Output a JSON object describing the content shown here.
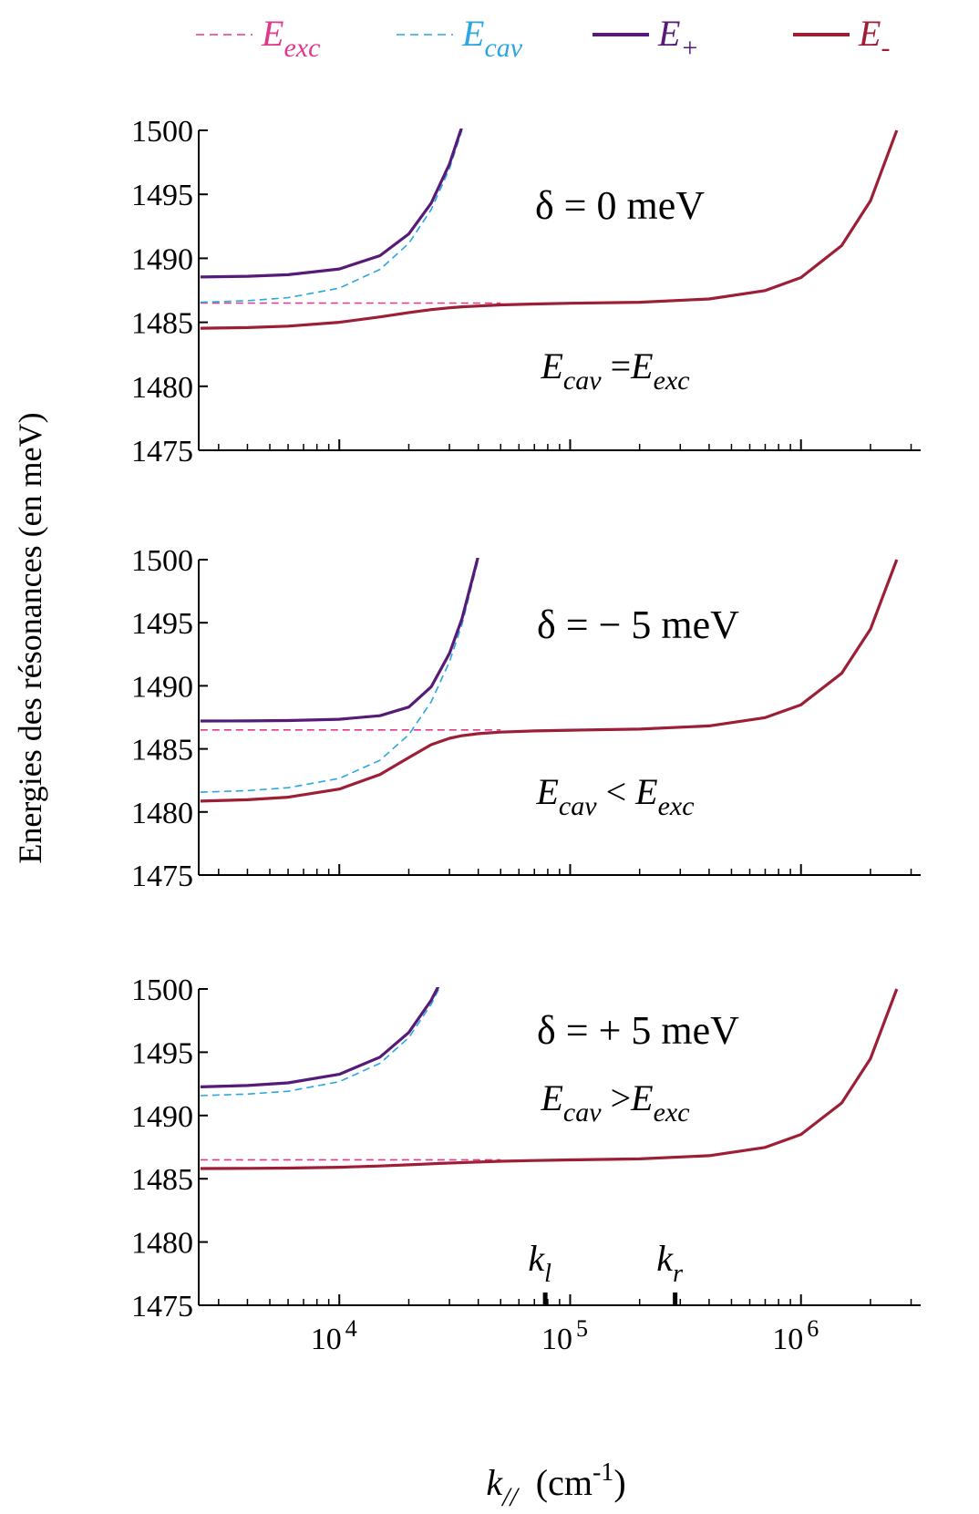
{
  "y_label": "Energies des résonances (en meV)",
  "chart_data": [
    {
      "type": "line",
      "xscale": "log",
      "xlim": [
        2460,
        3300000
      ],
      "ylim": [
        1475,
        1500
      ],
      "yticks": [
        1475,
        1480,
        1485,
        1490,
        1495,
        1500
      ],
      "xticks": [
        10000,
        100000,
        1000000
      ],
      "xtick_labels": false,
      "xminor_ticks": [
        3000,
        4000,
        5000,
        6000,
        7000,
        8000,
        9000,
        20000,
        30000,
        40000,
        50000,
        60000,
        70000,
        80000,
        90000,
        200000,
        300000,
        400000,
        500000,
        600000,
        700000,
        800000,
        900000,
        2000000,
        3000000
      ],
      "annotation": "δ = 0 meV",
      "relation": [
        {
          "text": "E",
          "sub": "cav",
          "italic": true
        },
        {
          "text": " ="
        },
        {
          "text": "E",
          "sub": "exc",
          "italic": true
        }
      ],
      "x": [
        2500,
        4000,
        6000,
        10000,
        15000,
        20000,
        25000,
        30000,
        34000,
        50000,
        70000,
        100000,
        200000,
        400000,
        700000,
        1000000,
        1500000,
        2000000,
        2600000
      ],
      "series": [
        {
          "name": "E",
          "subscript": "exc",
          "color": "#e2388c",
          "dashed": true,
          "values": [
            1486.5,
            1486.5,
            1486.5,
            1486.5,
            1486.5,
            1486.5,
            1486.5,
            1486.5,
            1486.5,
            1486.5,
            null,
            null,
            null,
            null,
            null,
            null,
            null,
            null,
            null
          ]
        },
        {
          "name": "E",
          "subscript": "cav",
          "color": "#2aa6e0",
          "dashed": true,
          "values": [
            1486.57,
            1486.69,
            1486.92,
            1487.67,
            1489.13,
            1491.17,
            1493.8,
            1497.01,
            1500,
            null,
            null,
            null,
            null,
            null,
            null,
            null,
            null,
            null,
            null
          ]
        },
        {
          "name": "E",
          "subscript": "+",
          "color": "#561a78",
          "dashed": false,
          "values": [
            1488.54,
            1488.6,
            1488.72,
            1489.17,
            1490.21,
            1491.91,
            1494.31,
            1497.37,
            1500.29,
            null,
            null,
            null,
            null,
            null,
            null,
            null,
            null,
            null,
            null
          ]
        },
        {
          "name": "E",
          "subscript": "-",
          "color": "#9c1f36",
          "dashed": false,
          "values": [
            1484.54,
            1484.59,
            1484.7,
            1485,
            1485.42,
            1485.76,
            1485.99,
            1486.13,
            1486.21,
            1486.36,
            1486.43,
            1486.49,
            1486.57,
            1486.82,
            1487.48,
            1488.5,
            1490.99,
            1494.49,
            1500
          ]
        }
      ]
    },
    {
      "type": "line",
      "xscale": "log",
      "xlim": [
        2460,
        3300000
      ],
      "ylim": [
        1475,
        1500
      ],
      "yticks": [
        1475,
        1480,
        1485,
        1490,
        1495,
        1500
      ],
      "xticks": [
        10000,
        100000,
        1000000
      ],
      "xtick_labels": false,
      "xminor_ticks": [
        3000,
        4000,
        5000,
        6000,
        7000,
        8000,
        9000,
        20000,
        30000,
        40000,
        50000,
        60000,
        70000,
        80000,
        90000,
        200000,
        300000,
        400000,
        500000,
        600000,
        700000,
        800000,
        900000,
        2000000,
        3000000
      ],
      "annotation": "δ = − 5 meV",
      "relation": [
        {
          "text": "E",
          "sub": "cav",
          "italic": true
        },
        {
          "text": " < "
        },
        {
          "text": "E",
          "sub": "exc",
          "italic": true
        }
      ],
      "x": [
        2500,
        4000,
        6000,
        10000,
        15000,
        20000,
        25000,
        30000,
        34000,
        40000,
        50000,
        70000,
        100000,
        200000,
        400000,
        700000,
        1000000,
        1500000,
        2000000,
        2600000
      ],
      "series": [
        {
          "name": "E",
          "subscript": "exc",
          "color": "#e2388c",
          "dashed": true,
          "values": [
            1486.5,
            1486.5,
            1486.5,
            1486.5,
            1486.5,
            1486.5,
            1486.5,
            1486.5,
            1486.5,
            1486.5,
            1486.5,
            null,
            null,
            null,
            null,
            null,
            null,
            null,
            null,
            null
          ]
        },
        {
          "name": "E",
          "subscript": "cav",
          "color": "#2aa6e0",
          "dashed": true,
          "values": [
            1481.57,
            1481.69,
            1481.92,
            1482.66,
            1484.1,
            1486.13,
            1488.73,
            1491.91,
            1494.87,
            1500,
            null,
            null,
            null,
            null,
            null,
            null,
            null,
            null,
            null,
            null
          ]
        },
        {
          "name": "E",
          "subscript": "+",
          "color": "#561a78",
          "dashed": false,
          "values": [
            1487.21,
            1487.22,
            1487.25,
            1487.35,
            1487.63,
            1488.32,
            1489.91,
            1492.57,
            1495.32,
            1500.29,
            null,
            null,
            null,
            null,
            null,
            null,
            null,
            null,
            null,
            null
          ]
        },
        {
          "name": "E",
          "subscript": "-",
          "color": "#9c1f36",
          "dashed": false,
          "values": [
            1480.86,
            1480.97,
            1481.17,
            1481.81,
            1482.97,
            1484.31,
            1485.33,
            1485.84,
            1486.05,
            1486.21,
            1486.33,
            1486.42,
            1486.48,
            1486.57,
            1486.82,
            1487.48,
            1488.5,
            1490.99,
            1494.49,
            1500
          ]
        }
      ]
    },
    {
      "type": "line",
      "xscale": "log",
      "xlim": [
        2460,
        3300000
      ],
      "ylim": [
        1475,
        1500
      ],
      "yticks": [
        1475,
        1480,
        1485,
        1490,
        1495,
        1500
      ],
      "xticks": [
        {
          "value": 10000,
          "label": "10",
          "exponent": "4"
        },
        {
          "value": 100000,
          "label": "10",
          "exponent": "5"
        },
        {
          "value": 1000000,
          "label": "10",
          "exponent": "6"
        }
      ],
      "xtick_labels": true,
      "xminor_ticks": [
        3000,
        4000,
        5000,
        6000,
        7000,
        8000,
        9000,
        20000,
        30000,
        40000,
        50000,
        60000,
        70000,
        80000,
        90000,
        200000,
        300000,
        400000,
        500000,
        600000,
        700000,
        800000,
        900000,
        2000000,
        3000000
      ],
      "annotation": "δ = + 5 meV",
      "relation": [
        {
          "text": "E",
          "sub": "cav",
          "italic": true
        },
        {
          "text": " >"
        },
        {
          "text": "E",
          "sub": "exc",
          "italic": true
        }
      ],
      "markers": [
        {
          "x": 78000,
          "label": "k",
          "subscript": "l"
        },
        {
          "x": 285000,
          "label": "k",
          "subscript": "r"
        }
      ],
      "x_label": [
        {
          "text": "k",
          "sub": "//",
          "italic": true
        },
        {
          "text": "  (cm",
          "sup": "-1"
        },
        {
          "text": ")"
        }
      ],
      "x": [
        2500,
        4000,
        6000,
        10000,
        15000,
        20000,
        25000,
        27000,
        50000,
        70000,
        100000,
        200000,
        400000,
        700000,
        1000000,
        1500000,
        2000000,
        2600000
      ],
      "series": [
        {
          "name": "E",
          "subscript": "exc",
          "color": "#e2388c",
          "dashed": true,
          "values": [
            1486.5,
            1486.5,
            1486.5,
            1486.5,
            1486.5,
            1486.5,
            1486.5,
            1486.5,
            1486.5,
            null,
            null,
            null,
            null,
            null,
            null,
            null,
            null,
            null
          ]
        },
        {
          "name": "E",
          "subscript": "cav",
          "color": "#2aa6e0",
          "dashed": true,
          "values": [
            1491.57,
            1491.69,
            1491.92,
            1492.67,
            1494.12,
            1496.16,
            1498.79,
            1500,
            null,
            null,
            null,
            null,
            null,
            null,
            null,
            null,
            null,
            null
          ]
        },
        {
          "name": "E",
          "subscript": "+",
          "color": "#561a78",
          "dashed": false,
          "values": [
            1492.26,
            1492.37,
            1492.58,
            1493.26,
            1494.61,
            1496.56,
            1499.11,
            1500.29,
            null,
            null,
            null,
            null,
            null,
            null,
            null,
            null,
            null,
            null
          ]
        },
        {
          "name": "E",
          "subscript": "-",
          "color": "#9c1f36",
          "dashed": false,
          "values": [
            1485.81,
            1485.82,
            1485.84,
            1485.91,
            1486.01,
            1486.1,
            1486.18,
            1486.21,
            1486.38,
            1486.44,
            1486.49,
            1486.57,
            1486.82,
            1487.48,
            1488.5,
            1490.99,
            1494.49,
            1500
          ]
        }
      ]
    }
  ]
}
